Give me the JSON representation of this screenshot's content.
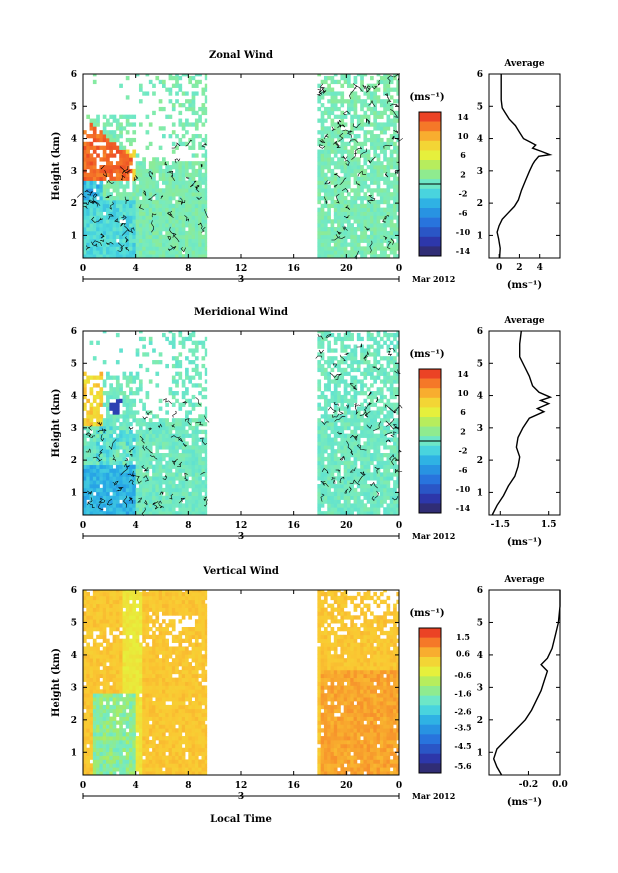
{
  "date_label": "Mar 2012",
  "xlabel_bottom": "Local Time",
  "colorbar_unit": "(ms⁻¹)",
  "avg_unit": "(ms⁻¹)",
  "chart_data": [
    {
      "type": "heatmap",
      "title": "Zonal Wind",
      "ylabel": "Height (km)",
      "xticks": [
        "0",
        "4",
        "8",
        "12",
        "16",
        "20",
        "0"
      ],
      "xlim": [
        0,
        24
      ],
      "day_label": "3",
      "yticks": [
        "1",
        "2",
        "3",
        "4",
        "5",
        "6"
      ],
      "ylim": [
        0.3,
        6
      ],
      "data_windows_hours": [
        [
          0,
          9.4
        ],
        [
          17.8,
          24
        ]
      ],
      "colorbar": {
        "min": -15,
        "max": 15,
        "ticks": [
          "14",
          "10",
          "6",
          "2",
          "-2",
          "-6",
          "-10",
          "-14"
        ],
        "tick_values": [
          14,
          10,
          6,
          2,
          -2,
          -6,
          -10,
          -14
        ]
      },
      "average_profile": {
        "title": "Average",
        "xlim": [
          -1,
          6
        ],
        "xticks": [
          "0",
          "2",
          "4"
        ],
        "xtick_values": [
          0,
          2,
          4
        ],
        "points": [
          [
            0.05,
            0.3
          ],
          [
            0.1,
            0.6
          ],
          [
            -0.05,
            0.9
          ],
          [
            -0.2,
            1.1
          ],
          [
            0.0,
            1.3
          ],
          [
            0.3,
            1.5
          ],
          [
            0.9,
            1.7
          ],
          [
            1.5,
            1.9
          ],
          [
            1.9,
            2.1
          ],
          [
            2.2,
            2.4
          ],
          [
            2.6,
            2.7
          ],
          [
            3.0,
            3.0
          ],
          [
            3.3,
            3.2
          ],
          [
            3.5,
            3.3
          ],
          [
            3.9,
            3.45
          ],
          [
            5.0,
            3.5
          ],
          [
            4.2,
            3.6
          ],
          [
            3.3,
            3.7
          ],
          [
            3.6,
            3.8
          ],
          [
            3.0,
            3.9
          ],
          [
            2.4,
            4.0
          ],
          [
            2.0,
            4.2
          ],
          [
            1.6,
            4.4
          ],
          [
            1.0,
            4.6
          ],
          [
            0.6,
            4.8
          ],
          [
            0.3,
            4.95
          ],
          [
            0.2,
            5.2
          ],
          [
            0.2,
            6.0
          ]
        ]
      }
    },
    {
      "type": "heatmap",
      "title": "Meridional Wind",
      "ylabel": "Height (km)",
      "xticks": [
        "0",
        "4",
        "8",
        "12",
        "16",
        "20",
        "0"
      ],
      "xlim": [
        0,
        24
      ],
      "day_label": "3",
      "yticks": [
        "1",
        "2",
        "3",
        "4",
        "5",
        "6"
      ],
      "ylim": [
        0.3,
        6
      ],
      "data_windows_hours": [
        [
          0,
          9.4
        ],
        [
          17.8,
          24
        ]
      ],
      "colorbar": {
        "min": -15,
        "max": 15,
        "ticks": [
          "14",
          "10",
          "6",
          "2",
          "-2",
          "-6",
          "-10",
          "-14"
        ],
        "tick_values": [
          14,
          10,
          6,
          2,
          -2,
          -6,
          -10,
          -14
        ]
      },
      "average_profile": {
        "title": "Average",
        "xlim": [
          -2.2,
          2.2
        ],
        "xticks": [
          "-1.5",
          "1.5"
        ],
        "xtick_values": [
          -1.5,
          1.5
        ],
        "points": [
          [
            -2.0,
            0.3
          ],
          [
            -1.7,
            0.6
          ],
          [
            -1.3,
            0.9
          ],
          [
            -1.0,
            1.2
          ],
          [
            -0.6,
            1.5
          ],
          [
            -0.4,
            1.8
          ],
          [
            -0.3,
            2.1
          ],
          [
            -0.5,
            2.4
          ],
          [
            -0.4,
            2.7
          ],
          [
            -0.1,
            3.0
          ],
          [
            0.3,
            3.3
          ],
          [
            1.2,
            3.5
          ],
          [
            0.8,
            3.6
          ],
          [
            1.5,
            3.75
          ],
          [
            1.0,
            3.85
          ],
          [
            1.6,
            3.95
          ],
          [
            0.9,
            4.1
          ],
          [
            0.5,
            4.3
          ],
          [
            0.3,
            4.6
          ],
          [
            0.0,
            4.9
          ],
          [
            -0.3,
            5.2
          ],
          [
            -0.3,
            5.6
          ],
          [
            -0.2,
            6.0
          ]
        ]
      }
    },
    {
      "type": "heatmap",
      "title": "Vertical Wind",
      "ylabel": "Height (km)",
      "xlabel": "Local Time",
      "xticks": [
        "0",
        "4",
        "8",
        "12",
        "16",
        "20",
        "0"
      ],
      "xlim": [
        0,
        24
      ],
      "day_label": "3",
      "yticks": [
        "1",
        "2",
        "3",
        "4",
        "5",
        "6"
      ],
      "ylim": [
        0.3,
        6
      ],
      "data_windows_hours": [
        [
          0,
          9.4
        ],
        [
          17.8,
          24
        ]
      ],
      "colorbar": {
        "min": -6.0,
        "max": 2.0,
        "ticks": [
          "1.5",
          "0.6",
          "-0.6",
          "-1.6",
          "-2.6",
          "-3.5",
          "-4.5",
          "-5.6"
        ],
        "tick_values": [
          1.5,
          0.6,
          -0.6,
          -1.6,
          -2.6,
          -3.5,
          -4.5,
          -5.6
        ]
      },
      "average_profile": {
        "title": "Average",
        "xlim": [
          -0.45,
          0.0
        ],
        "xticks": [
          "-0.2",
          "0.0"
        ],
        "xtick_values": [
          -0.2,
          0.0
        ],
        "points": [
          [
            -0.37,
            0.3
          ],
          [
            -0.4,
            0.55
          ],
          [
            -0.42,
            0.8
          ],
          [
            -0.4,
            1.1
          ],
          [
            -0.34,
            1.4
          ],
          [
            -0.28,
            1.7
          ],
          [
            -0.22,
            2.0
          ],
          [
            -0.18,
            2.3
          ],
          [
            -0.15,
            2.6
          ],
          [
            -0.12,
            2.9
          ],
          [
            -0.1,
            3.2
          ],
          [
            -0.08,
            3.5
          ],
          [
            -0.12,
            3.7
          ],
          [
            -0.08,
            3.9
          ],
          [
            -0.05,
            4.2
          ],
          [
            -0.03,
            4.6
          ],
          [
            -0.01,
            5.0
          ],
          [
            0.0,
            5.5
          ],
          [
            0.0,
            6.0
          ]
        ]
      }
    }
  ]
}
